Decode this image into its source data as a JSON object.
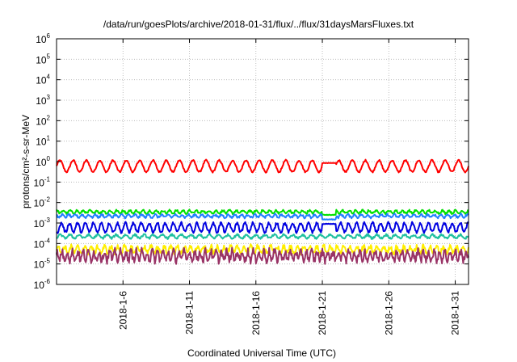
{
  "chart_data": {
    "type": "line",
    "title": "/data/run/goesPlots/archive/2018-01-31/flux/../flux/31daysMarsFluxes.txt",
    "xlabel": "Coordinated Universal Time (UTC)",
    "ylabel": "protons/cm²-s-sr-MeV",
    "yscale": "log",
    "ylim": [
      1e-06,
      1000000.0
    ],
    "y_ticks": [
      {
        "value": -6,
        "base": "10",
        "exp": "-6"
      },
      {
        "value": -5,
        "base": "10",
        "exp": "-5"
      },
      {
        "value": -4,
        "base": "10",
        "exp": "-4"
      },
      {
        "value": -3,
        "base": "10",
        "exp": "-3"
      },
      {
        "value": -2,
        "base": "10",
        "exp": "-2"
      },
      {
        "value": -1,
        "base": "10",
        "exp": "-1"
      },
      {
        "value": 0,
        "base": "10",
        "exp": "0"
      },
      {
        "value": 1,
        "base": "10",
        "exp": "1"
      },
      {
        "value": 2,
        "base": "10",
        "exp": "2"
      },
      {
        "value": 3,
        "base": "10",
        "exp": "3"
      },
      {
        "value": 4,
        "base": "10",
        "exp": "4"
      },
      {
        "value": 5,
        "base": "10",
        "exp": "5"
      },
      {
        "value": 6,
        "base": "10",
        "exp": "6"
      }
    ],
    "xlim": [
      "2018-01-01",
      "2018-02-01"
    ],
    "x_ticks": [
      "2018-1-6",
      "2018-1-11",
      "2018-1-16",
      "2018-1-21",
      "2018-1-26",
      "2018-1-31"
    ],
    "grid": true,
    "legend": "none",
    "series": [
      {
        "color": "#ff0000",
        "base": 0.6,
        "amplitude": 0.28,
        "period_days": 1.0,
        "noise": 0.04,
        "flat_segment": [
          "2018-01-21",
          "2018-01-22",
          0.85
        ]
      },
      {
        "color": "#00e000",
        "base": 0.0035,
        "amplitude": 0.07,
        "period_days": 0.5,
        "noise": 0.05,
        "dip": [
          "2018-01-21",
          "2018-01-22",
          0.0025
        ]
      },
      {
        "color": "#2080ff",
        "base": 0.0022,
        "amplitude": 0.07,
        "period_days": 0.5,
        "noise": 0.05,
        "dip": [
          "2018-01-21",
          "2018-01-22",
          0.0015
        ]
      },
      {
        "color": "#0000e0",
        "base": 0.0006,
        "amplitude": 0.22,
        "period_days": 0.6,
        "noise": 0.07,
        "flat_segment": [
          "2018-01-21",
          "2018-01-22",
          0.0009
        ]
      },
      {
        "color": "#20c0a0",
        "base": 0.00022,
        "amplitude": 0.08,
        "period_days": 0.7,
        "noise": 0.05
      },
      {
        "color": "#ffee00",
        "base": 5e-05,
        "amplitude": 0.15,
        "period_days": 0.5,
        "noise": 0.12
      },
      {
        "color": "#993366",
        "base": 2.5e-05,
        "amplitude": 0.22,
        "period_days": 0.4,
        "noise": 0.18
      }
    ]
  }
}
